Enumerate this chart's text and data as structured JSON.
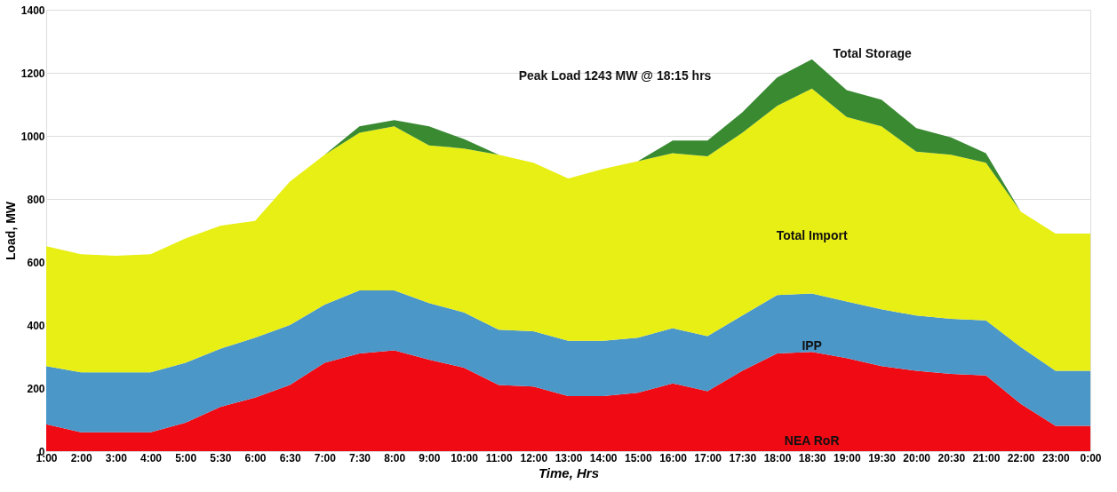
{
  "chart_data": {
    "type": "area",
    "stacked": true,
    "xlabel": "Time, Hrs",
    "ylabel": "Load, MW",
    "categories": [
      "1:00",
      "2:00",
      "3:00",
      "4:00",
      "5:00",
      "5:30",
      "6:00",
      "6:30",
      "7:00",
      "7:30",
      "8:00",
      "9:00",
      "10:00",
      "11:00",
      "12:00",
      "13:00",
      "14:00",
      "15:00",
      "16:00",
      "17:00",
      "17:30",
      "18:00",
      "18:30",
      "19:00",
      "19:30",
      "20:00",
      "20:30",
      "21:00",
      "22:00",
      "23:00",
      "0:00"
    ],
    "series": [
      {
        "name": "NEA RoR",
        "color": "#f00a14",
        "values": [
          85,
          60,
          60,
          60,
          90,
          140,
          170,
          210,
          280,
          310,
          320,
          290,
          265,
          210,
          205,
          175,
          175,
          185,
          215,
          190,
          255,
          310,
          315,
          295,
          270,
          255,
          245,
          240,
          150,
          80,
          80
        ]
      },
      {
        "name": "IPP",
        "color": "#4a97c8",
        "values": [
          185,
          190,
          190,
          190,
          190,
          185,
          190,
          190,
          185,
          200,
          190,
          180,
          175,
          175,
          175,
          175,
          175,
          175,
          175,
          175,
          175,
          185,
          185,
          180,
          180,
          175,
          175,
          175,
          180,
          175,
          175
        ]
      },
      {
        "name": "Total Import",
        "color": "#e8ef14",
        "values": [
          380,
          375,
          370,
          375,
          395,
          390,
          370,
          455,
          475,
          500,
          520,
          500,
          520,
          555,
          535,
          515,
          545,
          560,
          555,
          570,
          580,
          600,
          650,
          585,
          580,
          520,
          520,
          500,
          430,
          435,
          435
        ]
      },
      {
        "name": "Total Storage",
        "color": "#3a8a32",
        "values": [
          0,
          0,
          0,
          0,
          0,
          0,
          0,
          0,
          0,
          20,
          20,
          60,
          30,
          0,
          0,
          0,
          0,
          0,
          40,
          50,
          65,
          90,
          93,
          85,
          85,
          75,
          55,
          30,
          0,
          0,
          0
        ]
      }
    ],
    "ylim": [
      0,
      1400
    ],
    "yticks": [
      0,
      200,
      400,
      600,
      800,
      1000,
      1200,
      1400
    ],
    "grid": "y",
    "annotations": [
      "Peak Load 1243 MW @ 18:15 hrs"
    ]
  }
}
